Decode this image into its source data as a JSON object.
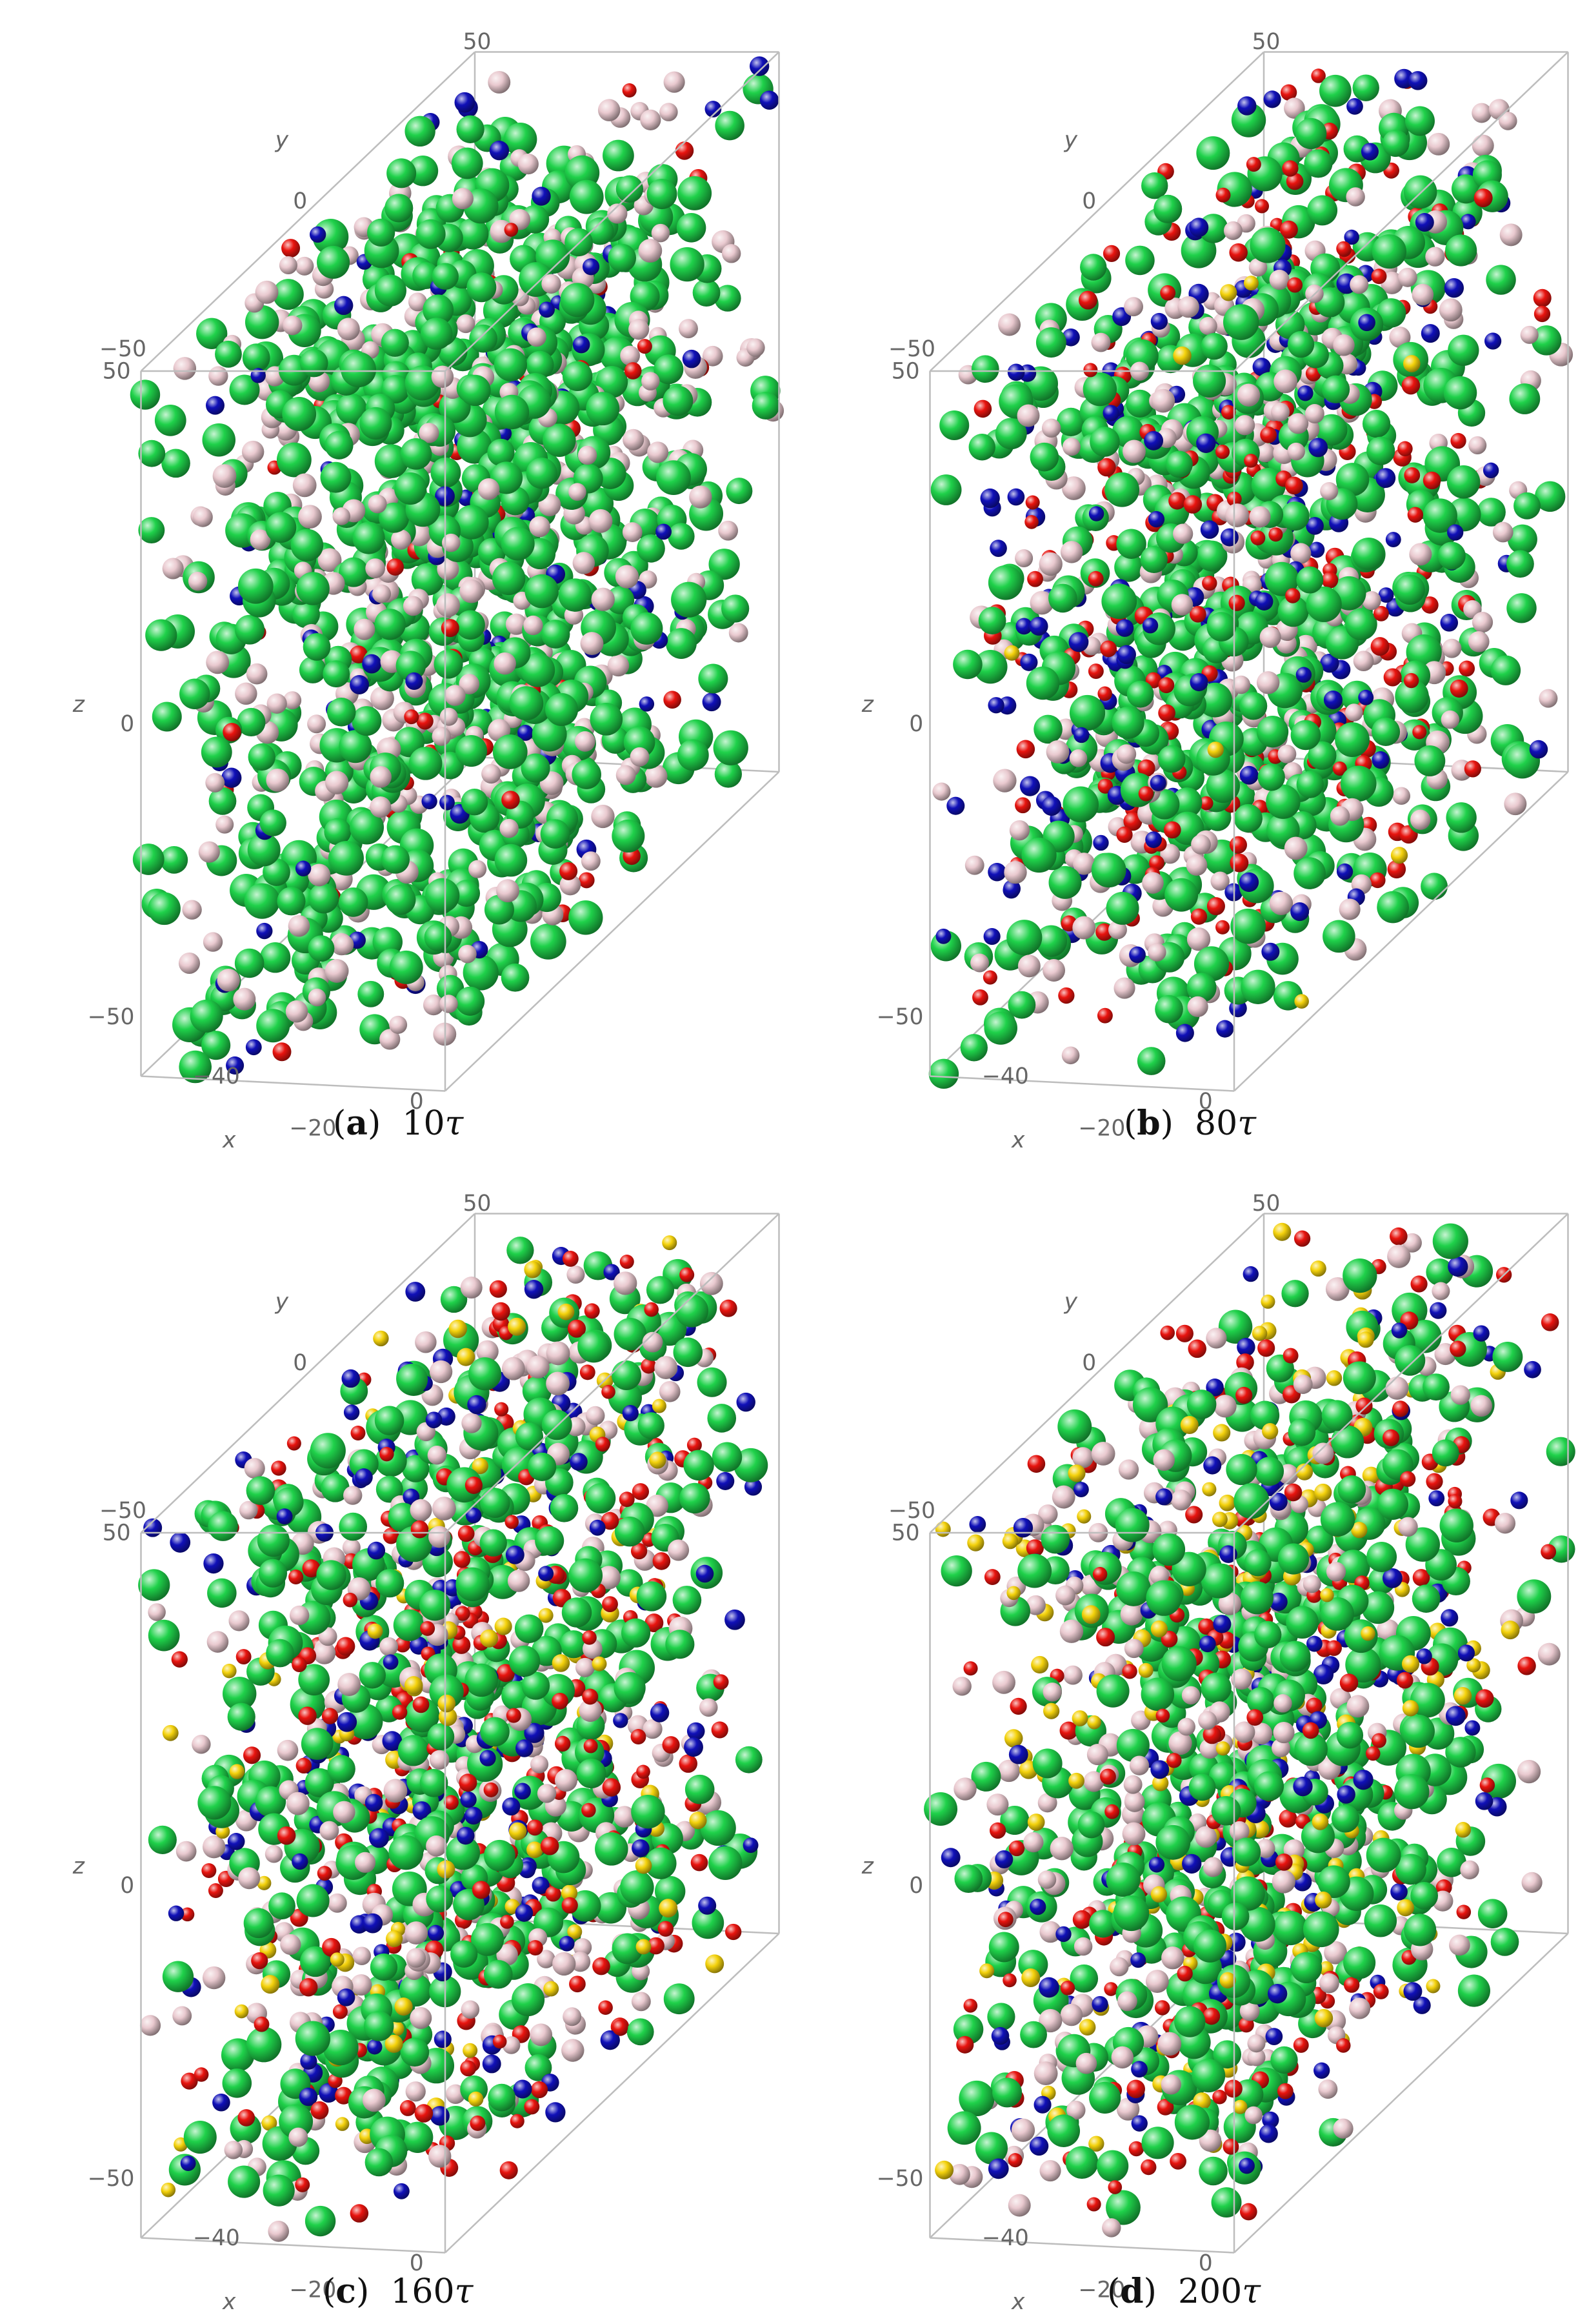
{
  "panels": [
    {
      "id": "a",
      "letter": "a",
      "time_value": "10",
      "time_unit": "τ",
      "mix": {
        "green": 0.56,
        "pink": 0.3,
        "red": 0.05,
        "blue": 0.09,
        "yellow": 0.0
      }
    },
    {
      "id": "b",
      "letter": "b",
      "time_value": "80",
      "time_unit": "τ",
      "mix": {
        "green": 0.4,
        "pink": 0.25,
        "red": 0.2,
        "blue": 0.14,
        "yellow": 0.01
      }
    },
    {
      "id": "c",
      "letter": "c",
      "time_value": "160",
      "time_unit": "τ",
      "mix": {
        "green": 0.33,
        "pink": 0.22,
        "red": 0.22,
        "blue": 0.14,
        "yellow": 0.09
      }
    },
    {
      "id": "d",
      "letter": "d",
      "time_value": "200",
      "time_unit": "τ",
      "mix": {
        "green": 0.34,
        "pink": 0.24,
        "red": 0.16,
        "blue": 0.12,
        "yellow": 0.14
      }
    }
  ],
  "axes": {
    "x": {
      "name": "x",
      "ticks": [
        "−40",
        "−20",
        "0"
      ]
    },
    "y": {
      "name": "y",
      "ticks": [
        "−50",
        "0",
        "50"
      ]
    },
    "z": {
      "name": "z",
      "ticks": [
        "−50",
        "0",
        "50"
      ]
    }
  },
  "particle_colors": {
    "green": "#1fd14a",
    "pink": "#e9c9cf",
    "red": "#e8140f",
    "blue": "#1010b8",
    "yellow": "#f4d20c"
  },
  "box_line_color": "#bdbdbd"
}
